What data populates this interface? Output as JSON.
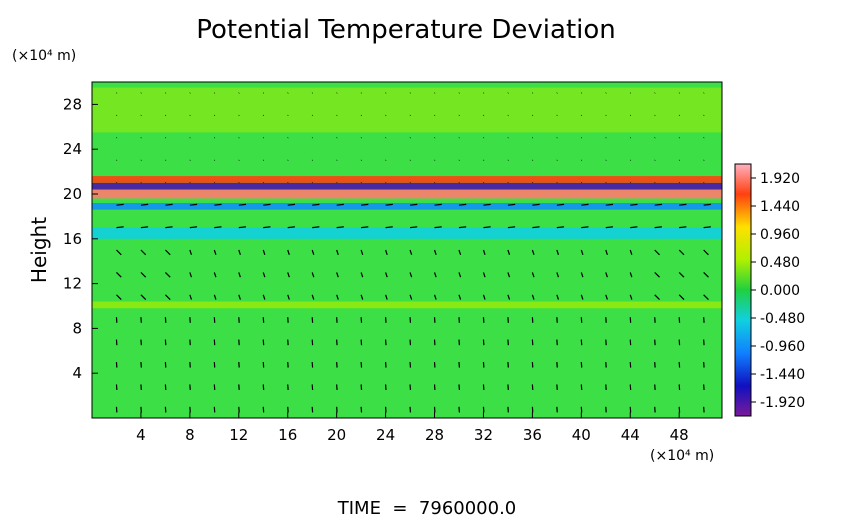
{
  "chart_data": {
    "type": "heatmap",
    "title": "Potential Temperature Deviation",
    "ylabel": "Height",
    "y_unit_label": "(×10⁴ m)",
    "x_unit_label": "(×10⁴ m)",
    "footer": "TIME  =  7960000.0",
    "xlim": [
      0,
      51.5
    ],
    "ylim": [
      0,
      30
    ],
    "x_ticks": [
      4,
      8,
      12,
      16,
      20,
      24,
      28,
      32,
      36,
      40,
      44,
      48
    ],
    "y_ticks": [
      4,
      8,
      12,
      16,
      20,
      24,
      28
    ],
    "colorbar": {
      "ticks": [
        1.92,
        1.44,
        0.96,
        0.48,
        0.0,
        -0.48,
        -0.96,
        -1.44,
        -1.92
      ],
      "tick_labels": [
        "1.920",
        "1.440",
        "0.960",
        "0.480",
        "0.000",
        "-0.480",
        "-0.960",
        "-1.440",
        "-1.920"
      ],
      "range": [
        -2.16,
        2.16
      ]
    },
    "bands": [
      {
        "y": [
          19.6,
          20.4
        ],
        "value": 1.9
      },
      {
        "y": [
          20.4,
          21.0
        ],
        "value": -1.9
      },
      {
        "y": [
          21.0,
          21.6
        ],
        "value": 1.6
      },
      {
        "y": [
          18.6,
          19.2
        ],
        "value": -0.9
      },
      {
        "y": [
          9.8,
          10.4
        ],
        "value": 0.4
      },
      {
        "y": [
          16.0,
          17.0
        ],
        "value": -0.5
      },
      {
        "y": [
          25.5,
          29.5
        ],
        "value": 0.45
      }
    ],
    "vectors_note": "wind vectors drawn on grid"
  }
}
